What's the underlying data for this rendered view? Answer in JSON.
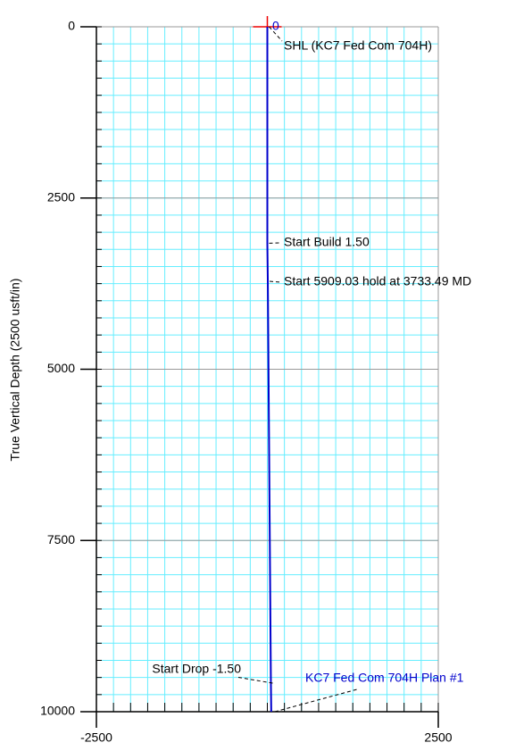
{
  "chart_data": {
    "type": "line",
    "y_label": "True Vertical Depth (2500 usft/in)",
    "series": [
      {
        "name": "KC7 Fed Com 704H Plan #1",
        "color": "#0000cc",
        "x": [
          0,
          0,
          7,
          52,
          57
        ],
        "values": [
          0,
          3160,
          3716,
          9583,
          10000
        ]
      }
    ],
    "annotations": [
      "0",
      "SHL (KC7 Fed Com 704H)",
      "Start Build 1.50",
      "Start 5909.03 hold at 3733.49 MD",
      "Start Drop -1.50"
    ],
    "xlim": [
      -2500,
      2500
    ],
    "xticks": [
      -2500,
      2500
    ],
    "ylim": [
      0,
      10000
    ],
    "yticks": [
      0,
      2500,
      5000,
      7500,
      10000
    ],
    "y_inverted": true,
    "grid": true,
    "minor_grid_step": 250,
    "minor_grid_color": "#66eeff",
    "major_grid_color": "#999999"
  }
}
